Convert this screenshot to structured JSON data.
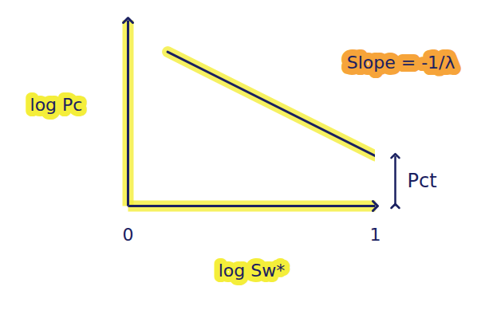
{
  "chart_data": {
    "type": "line",
    "x_label": "log Sw*",
    "y_label": "log Pc",
    "x": [
      0.16,
      1
    ],
    "values": [
      0.83,
      0.27
    ],
    "color": "#1a2060",
    "xlim": [
      0,
      1
    ],
    "xticks": [
      0,
      1
    ],
    "ylim": [
      0,
      1
    ],
    "yticks": [],
    "tick_labels": "x",
    "annotations": [
      "Slope = -1/λ",
      "Pct"
    ]
  }
}
